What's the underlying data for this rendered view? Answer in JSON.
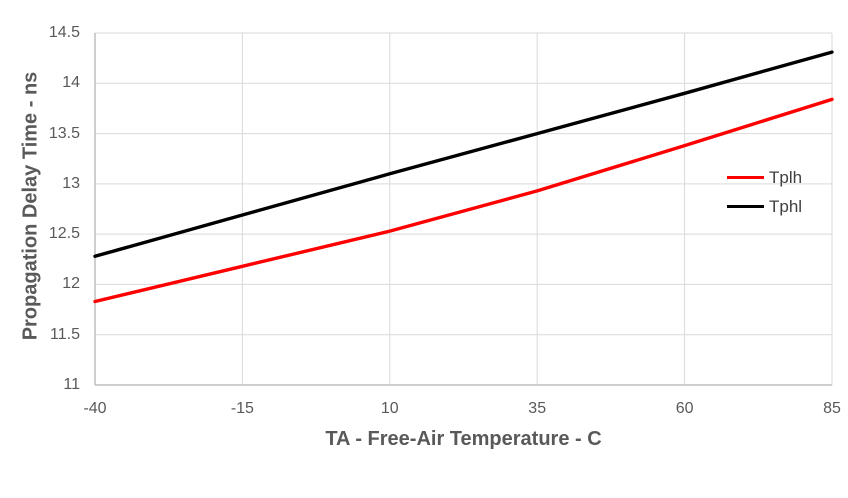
{
  "colors": {
    "background": "#FFFFFF",
    "grid": "#D9D9D9",
    "axis": "#BFBFBF",
    "tick_label": "#595959",
    "axis_title": "#595959",
    "legend_text": "#404040"
  },
  "chart_data": {
    "type": "line",
    "title": "",
    "xlabel": "TA - Free-Air Temperature - C",
    "ylabel": "Propagation Delay Time - ns",
    "x": [
      -40,
      -15,
      10,
      35,
      60,
      85
    ],
    "x_tick_labels": [
      "-40",
      "-15",
      "10",
      "35",
      "60",
      "85"
    ],
    "y_tick_labels": [
      "11",
      "11.5",
      "12",
      "12.5",
      "13",
      "13.5",
      "14",
      "14.5"
    ],
    "xlim": [
      -40,
      85
    ],
    "ylim": [
      11,
      14.5
    ],
    "grid": true,
    "legend_position": "inside-right",
    "series": [
      {
        "name": "Tplh",
        "color": "#FF0000",
        "values": [
          11.83,
          12.18,
          12.53,
          12.93,
          13.38,
          13.84
        ]
      },
      {
        "name": "Tphl",
        "color": "#000000",
        "values": [
          12.28,
          12.69,
          13.1,
          13.5,
          13.9,
          14.31
        ]
      }
    ]
  }
}
